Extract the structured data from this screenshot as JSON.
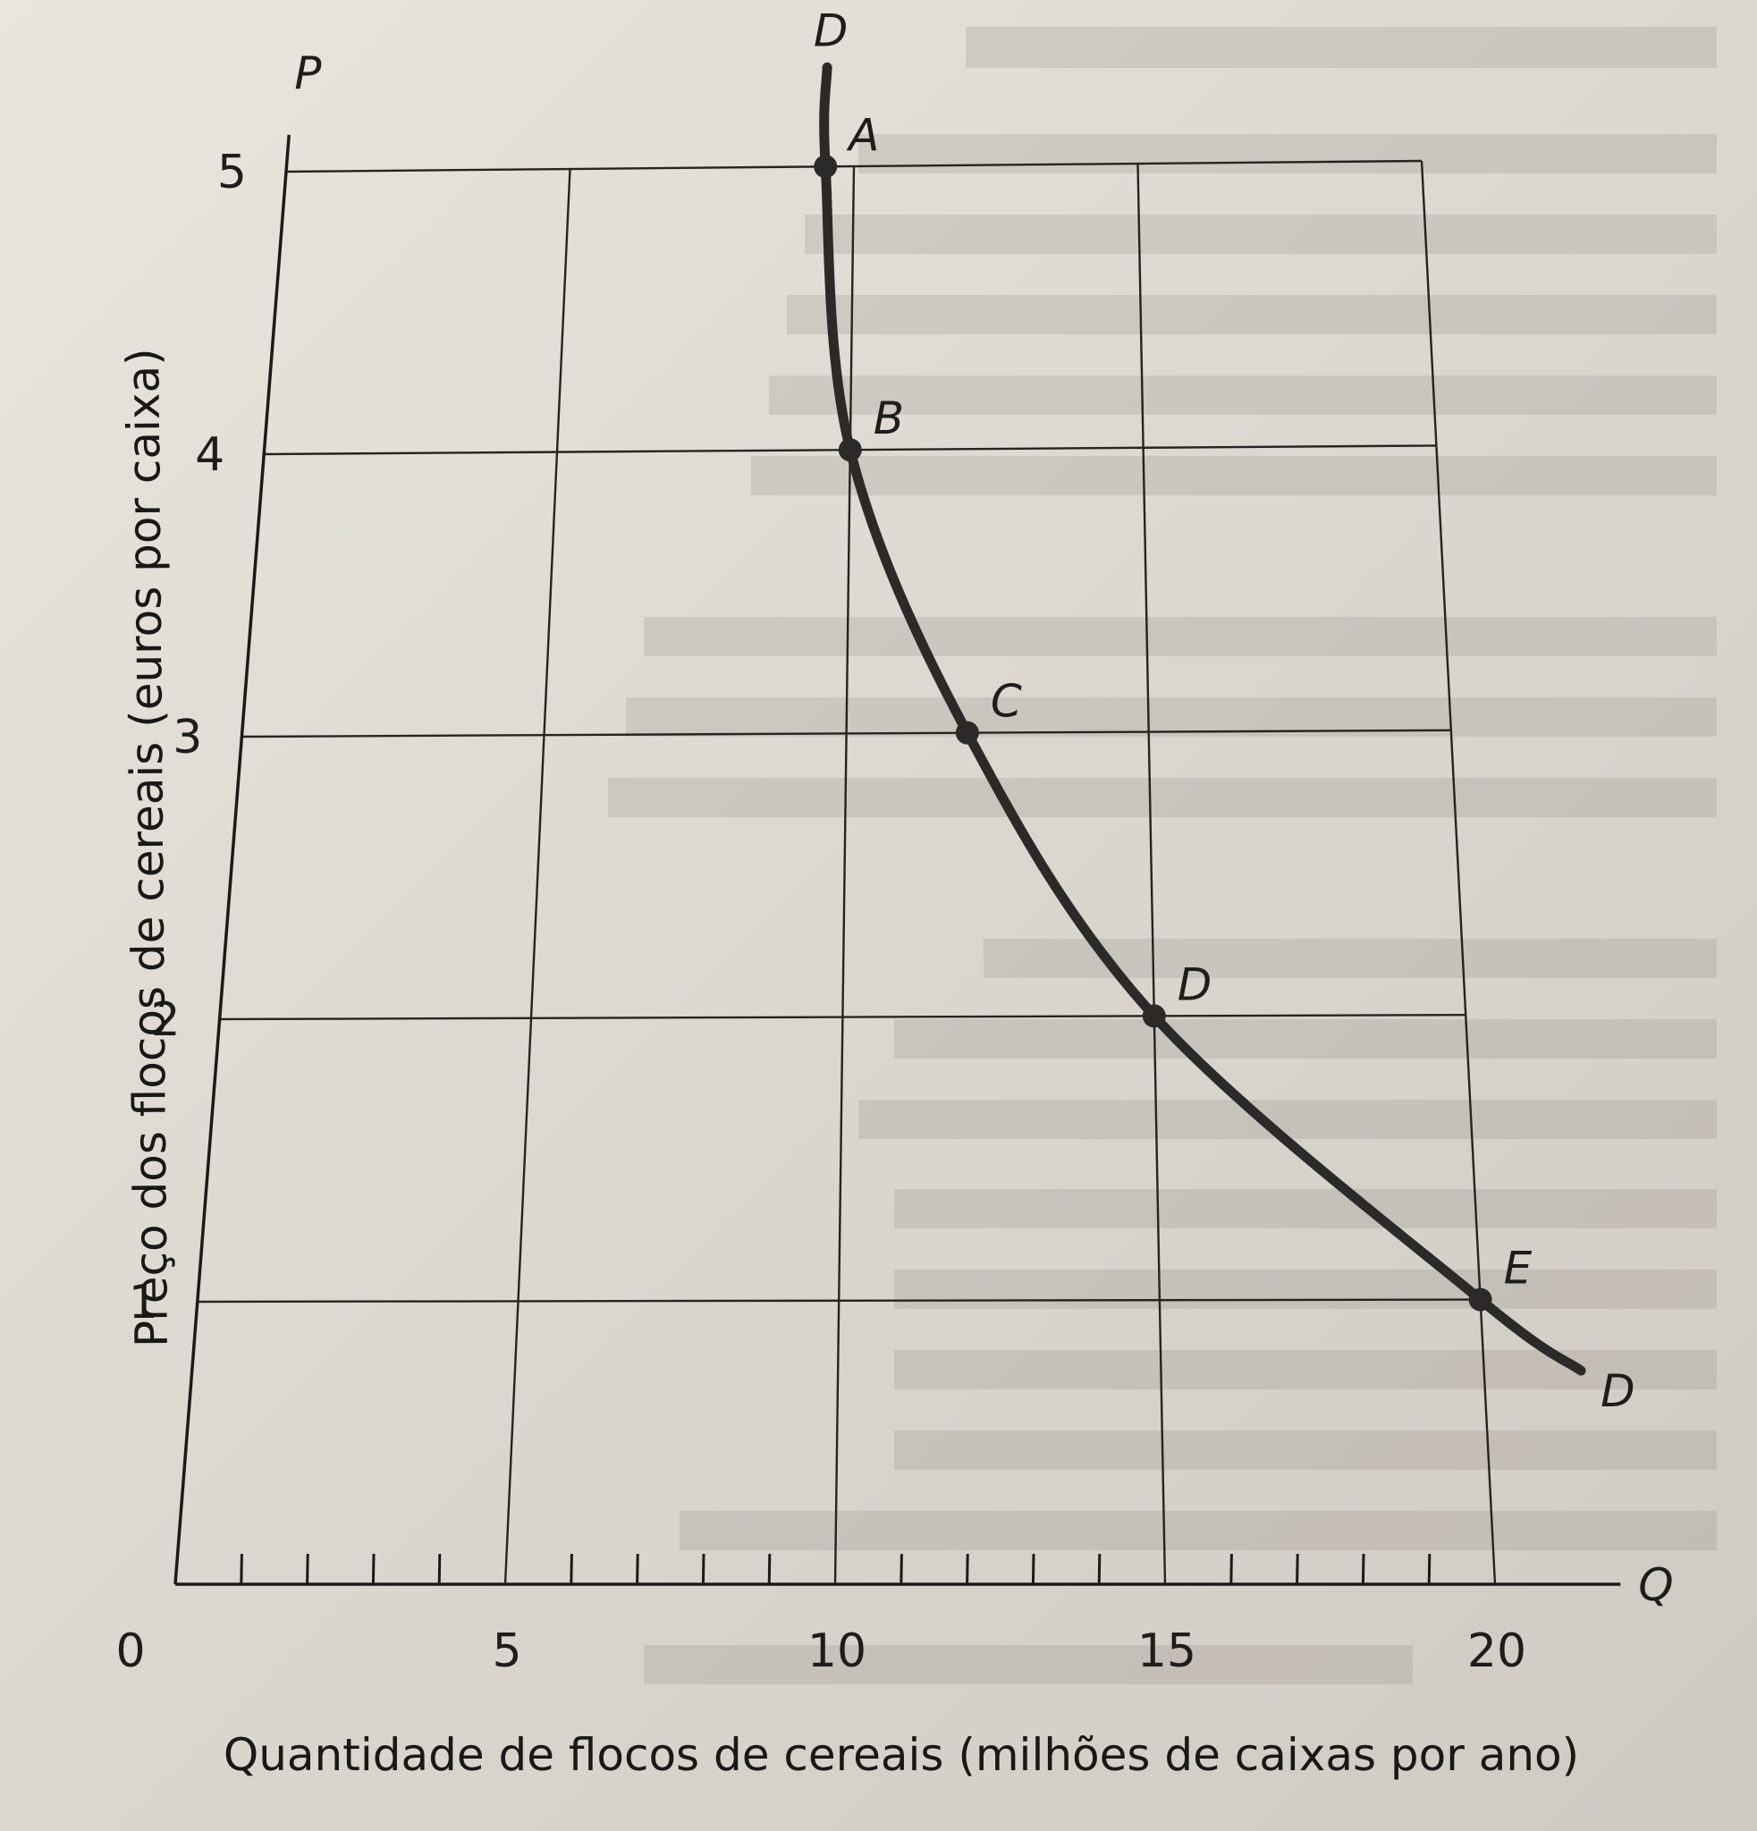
{
  "chart_data": {
    "type": "line",
    "title": "",
    "xlabel": "Quantidade de flocos de cereais (milhões de caixas por ano)",
    "ylabel": "Preço dos flocos de cereais (euros por caixa)",
    "x_axis_letter": "Q",
    "y_axis_letter": "P",
    "origin_label": "0",
    "xlim": [
      0,
      20
    ],
    "ylim": [
      0,
      5
    ],
    "x_ticks": [
      5,
      10,
      15,
      20
    ],
    "y_ticks": [
      1,
      2,
      3,
      4,
      5
    ],
    "grid": true,
    "series": [
      {
        "name": "D",
        "points": [
          {
            "label": "A",
            "x": 9.5,
            "y": 5
          },
          {
            "label": "B",
            "x": 10,
            "y": 4
          },
          {
            "label": "C",
            "x": 12,
            "y": 3
          },
          {
            "label": "D",
            "x": 15,
            "y": 2
          },
          {
            "label": "E",
            "x": 20,
            "y": 1
          }
        ],
        "curve_start": {
          "x": 9.5,
          "y": 5.35
        },
        "curve_end": {
          "x": 21.5,
          "y": 0.75
        }
      }
    ]
  }
}
